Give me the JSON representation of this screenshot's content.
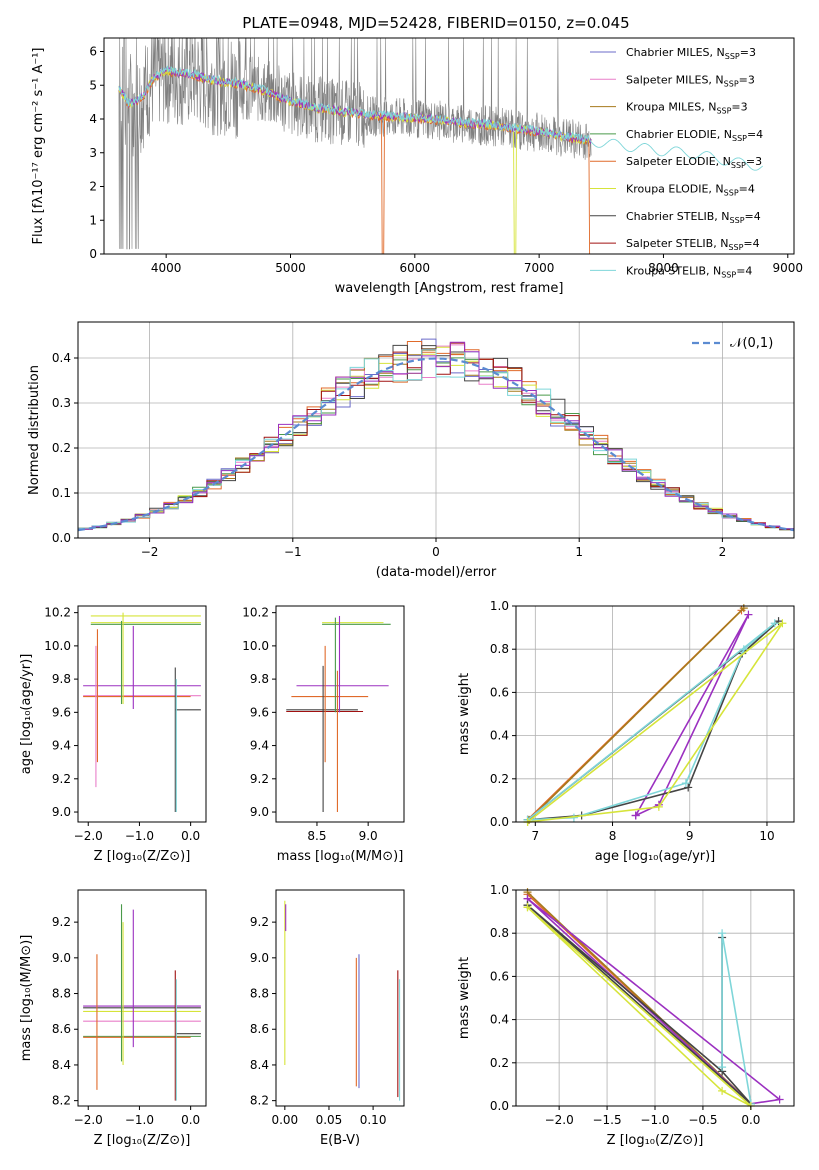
{
  "title": "PLATE=0948, MJD=52428, FIBERID=0150, z=0.045",
  "colors": {
    "chabrier_miles": "#6b6bc9",
    "salpeter_miles": "#e97fc9",
    "kroupa_miles": "#a67a1c",
    "chabrier_elodie": "#4a9a4a",
    "salpeter_elodie": "#e06a2a",
    "kroupa_elodie": "#d6e43a",
    "chabrier_stelib": "#444444",
    "salpeter_stelib": "#a01010",
    "kroupa_stelib": "#7fd6d9",
    "data": "#808080",
    "normal_curve": "#5b8bd1",
    "purple": "#9b30c0"
  },
  "chart_data": [
    {
      "type": "line",
      "id": "spectrum",
      "title": "PLATE=0948, MJD=52428, FIBERID=0150, z=0.045",
      "xlabel": "wavelength [Angstrom, rest frame]",
      "ylabel": "Flux [fλ10⁻¹⁷ erg cm⁻² s⁻¹ A⁻¹]",
      "xlim": [
        3500,
        9050
      ],
      "ylim": [
        0,
        6.4
      ],
      "xticks": [
        4000,
        5000,
        6000,
        7000,
        8000,
        9000
      ],
      "yticks": [
        0,
        1,
        2,
        3,
        4,
        5,
        6
      ],
      "legend_position": "right",
      "legend": [
        {
          "main": "Chabrier MILES, N",
          "sub": "SSP",
          "tail": "=3",
          "color_key": "chabrier_miles"
        },
        {
          "main": "Salpeter MILES, N",
          "sub": "SSP",
          "tail": "=3",
          "color_key": "salpeter_miles"
        },
        {
          "main": "Kroupa MILES, N",
          "sub": "SSP",
          "tail": "=3",
          "color_key": "kroupa_miles"
        },
        {
          "main": "Chabrier ELODIE, N",
          "sub": "SSP",
          "tail": "=4",
          "color_key": "chabrier_elodie"
        },
        {
          "main": "Salpeter ELODIE, N",
          "sub": "SSP",
          "tail": "=3",
          "color_key": "salpeter_elodie"
        },
        {
          "main": "Kroupa ELODIE, N",
          "sub": "SSP",
          "tail": "=4",
          "color_key": "kroupa_elodie"
        },
        {
          "main": "Chabrier STELIB, N",
          "sub": "SSP",
          "tail": "=4",
          "color_key": "chabrier_stelib"
        },
        {
          "main": "Salpeter STELIB, N",
          "sub": "SSP",
          "tail": "=4",
          "color_key": "salpeter_stelib"
        },
        {
          "main": "Kroupa STELIB, N",
          "sub": "SSP",
          "tail": "=4",
          "color_key": "kroupa_stelib"
        }
      ],
      "continuum": {
        "x": [
          3620,
          3700,
          3800,
          3900,
          4000,
          4200,
          4400,
          4600,
          4800,
          5000,
          5200,
          5400,
          5600,
          5800,
          6000,
          6200,
          6400,
          6600,
          6800,
          7000,
          7200,
          7400,
          7600,
          7800,
          8000,
          8200,
          8400,
          8600,
          8800
        ],
        "y": [
          4.9,
          4.4,
          4.6,
          5.2,
          5.4,
          5.3,
          5.1,
          5.0,
          4.8,
          4.5,
          4.3,
          4.2,
          4.1,
          4.05,
          4.0,
          3.95,
          3.85,
          3.8,
          3.7,
          3.6,
          3.45,
          3.35,
          3.25,
          3.15,
          3.05,
          3.0,
          2.85,
          2.7,
          2.6
        ]
      }
    },
    {
      "type": "step",
      "id": "residuals",
      "xlabel": "(data-model)/error",
      "ylabel": "Normed distribution",
      "xlim": [
        -2.5,
        2.5
      ],
      "ylim": [
        0,
        0.48
      ],
      "xticks": [
        -2,
        -1,
        0,
        1,
        2
      ],
      "yticks": [
        0.0,
        0.1,
        0.2,
        0.3,
        0.4
      ],
      "grid": true,
      "legend_position": "top-right",
      "curve_label": "𝒩(0,1)",
      "bin_width": 0.1
    },
    {
      "type": "scatter",
      "id": "age_vs_z",
      "xlabel": "Z [log₁₀(Z/Z⊙)]",
      "ylabel": "age [log₁₀(age/yr)]",
      "xlim": [
        -2.2,
        0.3
      ],
      "ylim": [
        8.94,
        10.24
      ],
      "xticks": [
        -2,
        -1,
        0
      ],
      "yticks": [
        9.0,
        9.2,
        9.4,
        9.6,
        9.8,
        10.0,
        10.2
      ],
      "hlines": [
        {
          "y": 10.13,
          "x0": -1.95,
          "x1": 0.2,
          "color_key": "chabrier_elodie"
        },
        {
          "y": 10.14,
          "x0": -1.95,
          "x1": 0.2,
          "color_key": "kroupa_elodie"
        },
        {
          "y": 10.18,
          "x0": -1.95,
          "x1": 0.2,
          "color_key": "kroupa_elodie"
        },
        {
          "y": 9.76,
          "x0": -2.1,
          "x1": 0.2,
          "color_key": "purple"
        },
        {
          "y": 9.7,
          "x0": -2.1,
          "x1": 0.2,
          "color_key": "salpeter_miles"
        },
        {
          "y": 9.695,
          "x0": -2.1,
          "x1": 0.0,
          "color_key": "salpeter_elodie"
        },
        {
          "y": 9.615,
          "x0": -0.3,
          "x1": 0.2,
          "color_key": "chabrier_stelib"
        }
      ],
      "vlines": [
        {
          "x": -1.82,
          "y0": 9.3,
          "y1": 10.1,
          "color_key": "salpeter_elodie"
        },
        {
          "x": -1.85,
          "y0": 9.15,
          "y1": 10.0,
          "color_key": "salpeter_miles"
        },
        {
          "x": -1.35,
          "y0": 9.65,
          "y1": 10.15,
          "color_key": "chabrier_elodie"
        },
        {
          "x": -1.32,
          "y0": 9.65,
          "y1": 10.2,
          "color_key": "kroupa_elodie"
        },
        {
          "x": -1.12,
          "y0": 9.62,
          "y1": 10.12,
          "color_key": "purple"
        },
        {
          "x": -0.3,
          "y0": 9.0,
          "y1": 9.87,
          "color_key": "chabrier_stelib"
        },
        {
          "x": -0.28,
          "y0": 9.0,
          "y1": 9.8,
          "color_key": "kroupa_stelib"
        }
      ]
    },
    {
      "type": "scatter",
      "id": "age_vs_mass",
      "xlabel": "mass [log₁₀(M/M⊙)]",
      "ylabel": "",
      "xlim": [
        8.1,
        9.35
      ],
      "ylim": [
        8.94,
        10.24
      ],
      "xticks": [
        8.5,
        9.0
      ],
      "yticks": [
        9.0,
        9.2,
        9.4,
        9.6,
        9.8,
        10.0,
        10.2
      ],
      "hlines": [
        {
          "y": 10.13,
          "x0": 8.55,
          "x1": 9.22,
          "color_key": "chabrier_elodie"
        },
        {
          "y": 10.14,
          "x0": 8.55,
          "x1": 9.15,
          "color_key": "kroupa_elodie"
        },
        {
          "y": 9.76,
          "x0": 8.3,
          "x1": 9.2,
          "color_key": "purple"
        },
        {
          "y": 9.695,
          "x0": 8.25,
          "x1": 9.0,
          "color_key": "salpeter_elodie"
        },
        {
          "y": 9.615,
          "x0": 8.2,
          "x1": 8.9,
          "color_key": "chabrier_stelib"
        },
        {
          "y": 9.605,
          "x0": 8.2,
          "x1": 8.95,
          "color_key": "salpeter_stelib"
        }
      ],
      "vlines": [
        {
          "x": 8.56,
          "y0": 9.0,
          "y1": 9.88,
          "color_key": "chabrier_stelib"
        },
        {
          "x": 8.58,
          "y0": 9.3,
          "y1": 10.0,
          "color_key": "salpeter_elodie"
        },
        {
          "x": 8.68,
          "y0": 9.6,
          "y1": 10.17,
          "color_key": "chabrier_elodie"
        },
        {
          "x": 8.7,
          "y0": 9.0,
          "y1": 9.85,
          "color_key": "salpeter_elodie"
        },
        {
          "x": 8.72,
          "y0": 9.6,
          "y1": 10.18,
          "color_key": "purple"
        }
      ]
    },
    {
      "type": "line",
      "id": "weight_vs_age",
      "xlabel": "age [log₁₀(age/yr)]",
      "ylabel": "mass weight",
      "xlim": [
        6.75,
        10.35
      ],
      "ylim": [
        0,
        1.0
      ],
      "xticks": [
        7,
        8,
        9,
        10
      ],
      "yticks": [
        0.0,
        0.2,
        0.4,
        0.6,
        0.8,
        1.0
      ],
      "grid": true,
      "series": [
        {
          "x": [
            6.9,
            9.67
          ],
          "y": [
            0.01,
            0.98
          ],
          "color_key": "salpeter_elodie"
        },
        {
          "x": [
            6.92,
            9.7
          ],
          "y": [
            0.01,
            0.99
          ],
          "color_key": "kroupa_miles"
        },
        {
          "x": [
            8.3,
            8.6,
            9.76,
            8.3
          ],
          "y": [
            0.03,
            0.08,
            0.96,
            0.03
          ],
          "color_key": "purple"
        },
        {
          "x": [
            6.9,
            7.6,
            8.98,
            9.68,
            10.15,
            6.9
          ],
          "y": [
            0.01,
            0.03,
            0.16,
            0.78,
            0.93,
            0.01
          ],
          "color_key": "chabrier_stelib"
        },
        {
          "x": [
            6.9,
            7.5,
            8.95,
            9.7,
            10.1,
            6.9
          ],
          "y": [
            0.01,
            0.02,
            0.18,
            0.8,
            0.92,
            0.01
          ],
          "color_key": "kroupa_stelib"
        },
        {
          "x": [
            6.9,
            8.6,
            10.2,
            6.9
          ],
          "y": [
            0.0,
            0.07,
            0.92,
            0.0
          ],
          "color_key": "kroupa_elodie"
        }
      ]
    },
    {
      "type": "scatter",
      "id": "mass_vs_z",
      "xlabel": "Z [log₁₀(Z/Z⊙)]",
      "ylabel": "mass [log₁₀(M/M⊙)]",
      "xlim": [
        -2.2,
        0.3
      ],
      "ylim": [
        8.17,
        9.38
      ],
      "xticks": [
        -2,
        -1,
        0
      ],
      "yticks": [
        8.2,
        8.4,
        8.6,
        8.8,
        9.0,
        9.2
      ],
      "hlines": [
        {
          "y": 8.73,
          "x0": -2.1,
          "x1": 0.2,
          "color_key": "purple"
        },
        {
          "y": 8.72,
          "x0": -2.1,
          "x1": 0.2,
          "color_key": "chabrier_stelib"
        },
        {
          "y": 8.7,
          "x0": -2.1,
          "x1": 0.2,
          "color_key": "kroupa_elodie"
        },
        {
          "y": 8.645,
          "x0": -2.1,
          "x1": 0.2,
          "color_key": "salpeter_miles"
        },
        {
          "y": 8.575,
          "x0": -0.3,
          "x1": 0.2,
          "color_key": "chabrier_stelib"
        },
        {
          "y": 8.56,
          "x0": -2.1,
          "x1": 0.2,
          "color_key": "chabrier_elodie"
        },
        {
          "y": 8.555,
          "x0": -2.1,
          "x1": 0.0,
          "color_key": "salpeter_elodie"
        }
      ],
      "vlines": [
        {
          "x": -1.83,
          "y0": 8.26,
          "y1": 9.02,
          "color_key": "salpeter_elodie"
        },
        {
          "x": -1.35,
          "y0": 8.42,
          "y1": 9.3,
          "color_key": "chabrier_elodie"
        },
        {
          "x": -1.32,
          "y0": 8.4,
          "y1": 9.2,
          "color_key": "kroupa_elodie"
        },
        {
          "x": -1.12,
          "y0": 8.5,
          "y1": 9.27,
          "color_key": "purple"
        },
        {
          "x": -0.3,
          "y0": 8.2,
          "y1": 8.93,
          "color_key": "salpeter_stelib"
        },
        {
          "x": -0.28,
          "y0": 8.2,
          "y1": 8.88,
          "color_key": "kroupa_stelib"
        }
      ]
    },
    {
      "type": "scatter",
      "id": "mass_vs_ebv",
      "xlabel": "E(B-V)",
      "ylabel": "",
      "xlim": [
        -0.01,
        0.135
      ],
      "ylim": [
        8.17,
        9.38
      ],
      "xticks": [
        0.0,
        0.05,
        0.1
      ],
      "xtick_labels": [
        "0.00",
        "0.05",
        "0.10"
      ],
      "yticks": [
        8.2,
        8.4,
        8.6,
        8.8,
        9.0,
        9.2
      ],
      "vlines": [
        {
          "x": 0.0,
          "y0": 8.4,
          "y1": 9.32,
          "color_key": "kroupa_elodie"
        },
        {
          "x": 0.001,
          "y0": 9.15,
          "y1": 9.3,
          "color_key": "purple"
        },
        {
          "x": 0.081,
          "y0": 8.28,
          "y1": 9.0,
          "color_key": "salpeter_elodie"
        },
        {
          "x": 0.084,
          "y0": 8.27,
          "y1": 9.02,
          "color_key": "chabrier_miles"
        },
        {
          "x": 0.128,
          "y0": 8.22,
          "y1": 8.93,
          "color_key": "salpeter_stelib"
        },
        {
          "x": 0.13,
          "y0": 8.2,
          "y1": 8.88,
          "color_key": "kroupa_stelib"
        }
      ]
    },
    {
      "type": "line",
      "id": "weight_vs_z",
      "xlabel": "Z [log₁₀(Z/Z⊙)]",
      "ylabel": "mass weight",
      "xlim": [
        -2.45,
        0.45
      ],
      "ylim": [
        0,
        1.0
      ],
      "xticks": [
        -2.0,
        -1.5,
        -1.0,
        -0.5,
        0.0
      ],
      "yticks": [
        0.0,
        0.2,
        0.4,
        0.6,
        0.8,
        1.0
      ],
      "grid": true,
      "series": [
        {
          "x": [
            -2.33,
            0.0
          ],
          "y": [
            0.98,
            0.01
          ],
          "color_key": "salpeter_elodie"
        },
        {
          "x": [
            -2.33,
            0.0
          ],
          "y": [
            0.99,
            0.01
          ],
          "color_key": "kroupa_miles"
        },
        {
          "x": [
            -2.33,
            0.0,
            0.3,
            -2.33
          ],
          "y": [
            0.96,
            0.01,
            0.03,
            0.96
          ],
          "color_key": "purple"
        },
        {
          "x": [
            -2.33,
            -0.3,
            -0.3,
            -0.3,
            0.0,
            -2.33
          ],
          "y": [
            0.93,
            0.16,
            0.78,
            0.16,
            0.01,
            0.93
          ],
          "color_key": "chabrier_stelib"
        },
        {
          "x": [
            -0.3,
            -0.3,
            0.0
          ],
          "y": [
            0.18,
            0.8,
            0.01
          ],
          "color_key": "kroupa_stelib"
        },
        {
          "x": [
            -2.33,
            -0.3,
            0.0,
            -2.33
          ],
          "y": [
            0.92,
            0.07,
            0.0,
            0.92
          ],
          "color_key": "kroupa_elodie"
        }
      ]
    }
  ]
}
